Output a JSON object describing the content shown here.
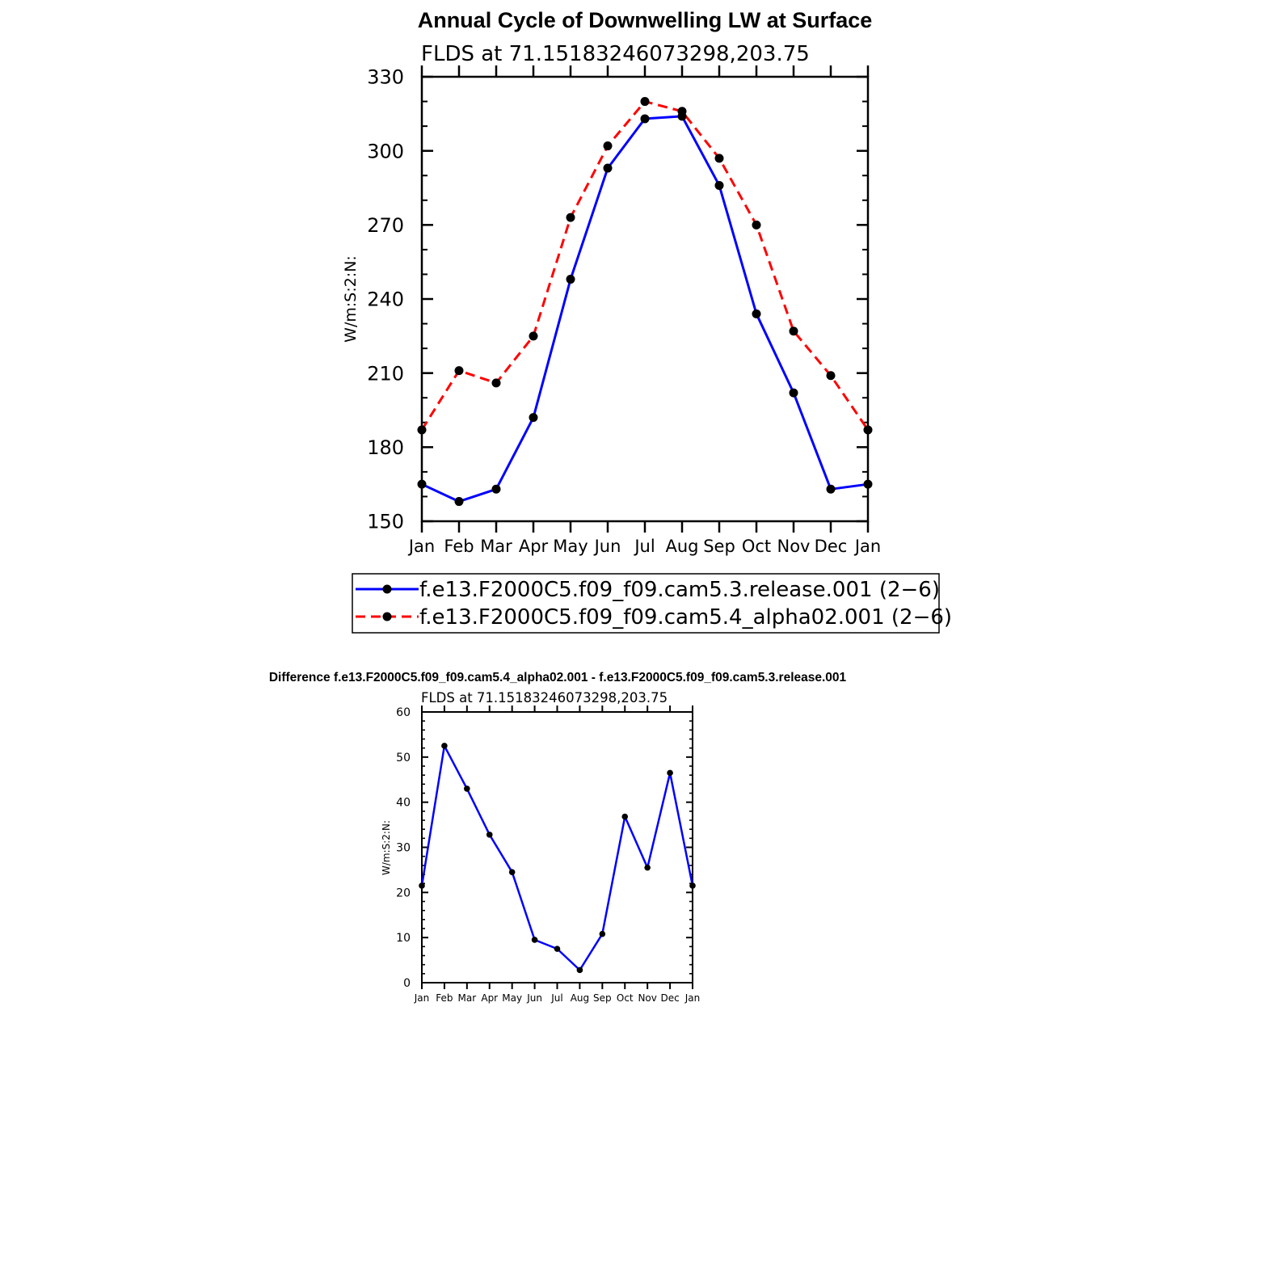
{
  "chart_data": [
    {
      "type": "line",
      "title": "Annual Cycle of Downwelling LW at Surface",
      "subtitle": "FLDS at 71.15183246073298,203.75",
      "xlabel": "",
      "ylabel": "W/m:S:2:N:",
      "categories": [
        "Jan",
        "Feb",
        "Mar",
        "Apr",
        "May",
        "Jun",
        "Jul",
        "Aug",
        "Sep",
        "Oct",
        "Nov",
        "Dec",
        "Jan"
      ],
      "ylim": [
        150,
        330
      ],
      "yticks": [
        150,
        180,
        210,
        240,
        270,
        300,
        330
      ],
      "grid": false,
      "legend": "bottom",
      "series": [
        {
          "name": "f.e13.F2000C5.f09_f09.cam5.3.release.001 (2−6)",
          "color": "#0000ff",
          "dash": "solid",
          "values": [
            165,
            158,
            163,
            192,
            248,
            293,
            313,
            314,
            286,
            234,
            202,
            163,
            165
          ]
        },
        {
          "name": "f.e13.F2000C5.f09_f09.cam5.4_alpha02.001 (2−6)",
          "color": "#ff0000",
          "dash": "dashed",
          "values": [
            187,
            211,
            206,
            225,
            273,
            302,
            320,
            316,
            297,
            270,
            227,
            209,
            187
          ]
        }
      ]
    },
    {
      "type": "line",
      "title": "Difference f.e13.F2000C5.f09_f09.cam5.4_alpha02.001 - f.e13.F2000C5.f09_f09.cam5.3.release.001",
      "subtitle": "FLDS at 71.15183246073298,203.75",
      "xlabel": "",
      "ylabel": "W/m:S:2:N:",
      "categories": [
        "Jan",
        "Feb",
        "Mar",
        "Apr",
        "May",
        "Jun",
        "Jul",
        "Aug",
        "Sep",
        "Oct",
        "Nov",
        "Dec",
        "Jan"
      ],
      "ylim": [
        0,
        60
      ],
      "yticks": [
        0,
        10,
        20,
        30,
        40,
        50,
        60
      ],
      "grid": false,
      "series": [
        {
          "color": "#0000ff",
          "dash": "solid",
          "values": [
            21.5,
            52.5,
            43,
            32.8,
            24.5,
            9.5,
            7.5,
            2.8,
            10.8,
            36.8,
            25.5,
            46.5,
            21.5
          ]
        }
      ]
    }
  ]
}
